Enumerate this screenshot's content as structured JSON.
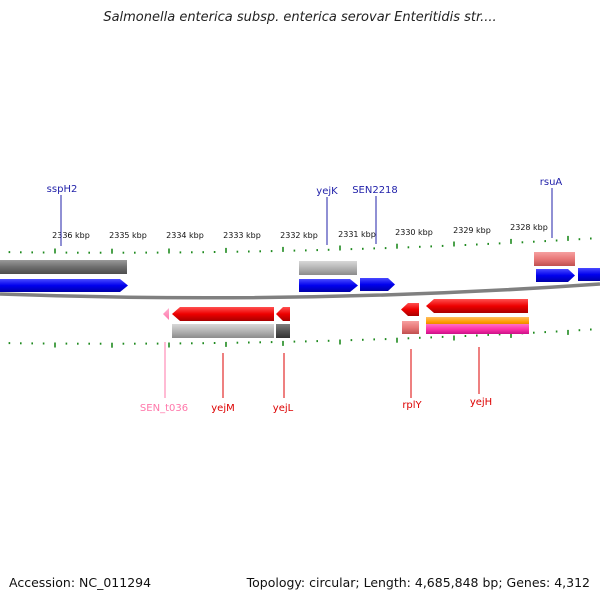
{
  "header": {
    "title": "Salmonella enterica subsp. enterica serovar Enteritidis str...."
  },
  "footer": {
    "accession": "Accession: NC_011294",
    "summary": "Topology: circular; Length: 4,685,848 bp; Genes: 4,312"
  },
  "colors": {
    "backbone": "#808080",
    "tick": "#1f8a1f",
    "forward_cds": "#0000ee",
    "reverse_cds": "#ee0000",
    "gene_gray": "#a8a8a8",
    "gene_dark": "#555555",
    "gene_salmon": "#e87878",
    "gene_orange": "#ff9900",
    "gene_magenta": "#ff33aa",
    "trna_pink": "#ff88bb",
    "label_forward": "#2222aa",
    "label_reverse": "#dd0000",
    "label_trna": "#ff77aa"
  },
  "axis": {
    "unit": "kbp",
    "ticks": [
      {
        "label": "2336 kbp"
      },
      {
        "label": "2335 kbp"
      },
      {
        "label": "2334 kbp"
      },
      {
        "label": "2333 kbp"
      },
      {
        "label": "2332 kbp"
      },
      {
        "label": "2331 kbp"
      },
      {
        "label": "2330 kbp"
      },
      {
        "label": "2329 kbp"
      },
      {
        "label": "2328 kbp"
      }
    ]
  },
  "gene_labels": {
    "forward": [
      "sspH2",
      "yejK",
      "SEN2218",
      "rsuA"
    ],
    "reverse": [
      "SEN_t036",
      "yejM",
      "yejL",
      "rplY",
      "yejH"
    ]
  }
}
